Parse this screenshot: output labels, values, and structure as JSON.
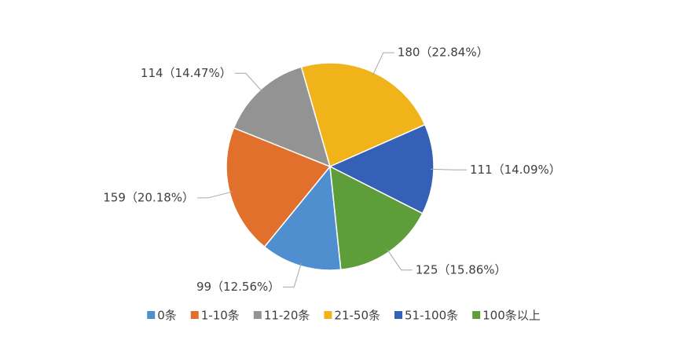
{
  "chart_data": {
    "type": "pie",
    "categories": [
      "0条",
      "1-10条",
      "11-20条",
      "21-50条",
      "51-100条",
      "100条以上"
    ],
    "values": [
      99,
      159,
      114,
      180,
      111,
      125
    ],
    "value_labels": [
      "99（12.56%）",
      "159（20.18%）",
      "114（14.47%）",
      "180（22.84%）",
      "111（14.09%）",
      "125（15.86%）"
    ],
    "colors": [
      "#4f8fcf",
      "#e0702b",
      "#939393",
      "#f0b31a",
      "#3560b8",
      "#5d9d3a"
    ],
    "legend": "bottom"
  }
}
